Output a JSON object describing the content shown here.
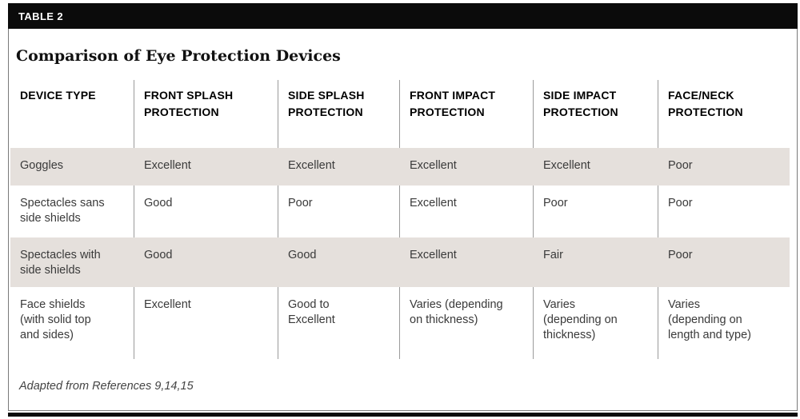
{
  "label": "TABLE 2",
  "title": "Comparison of Eye Protection Devices",
  "columns": [
    "DEVICE TYPE",
    "FRONT SPLASH\nPROTECTION",
    "SIDE SPLASH\nPROTECTION",
    "FRONT IMPACT\nPROTECTION",
    "SIDE IMPACT\nPROTECTION",
    "FACE/NECK\nPROTECTION"
  ],
  "rows": [
    {
      "cells": [
        "Goggles",
        "Excellent",
        "Excellent",
        "Excellent",
        "Excellent",
        "Poor"
      ]
    },
    {
      "cells": [
        "Spectacles sans\nside shields",
        "Good",
        "Poor",
        "Excellent",
        "Poor",
        "Poor"
      ]
    },
    {
      "cells": [
        "Spectacles with\nside shields",
        "Good",
        "Good",
        "Excellent",
        "Fair",
        "Poor"
      ]
    },
    {
      "cells": [
        "Face shields\n(with solid top\nand sides)",
        "Excellent",
        "Good to\nExcellent",
        "Varies (depending\non thickness)",
        "Varies\n(depending on\nthickness)",
        "Varies\n(depending on\nlength and type)"
      ]
    }
  ],
  "footnote": "Adapted from References 9,14,15",
  "colors": {
    "shaded_row": "#e5e0dc",
    "bar": "#0b0b0b",
    "rule": "#9b9b9b",
    "frame_border": "#7a7a7a",
    "cell_text": "#3a3a3a"
  }
}
